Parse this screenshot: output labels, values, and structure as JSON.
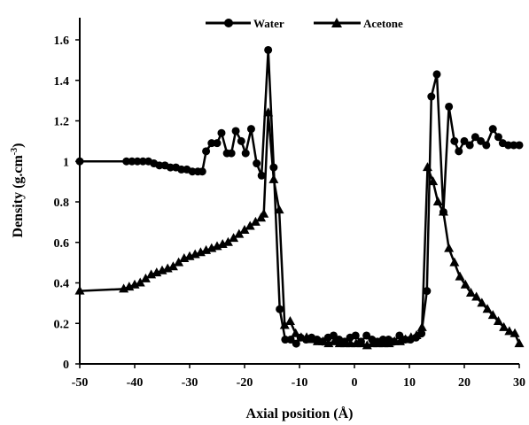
{
  "chart_data": {
    "type": "line",
    "xlabel": "Axial position (Å)",
    "ylabel_main": "Density (g.cm",
    "ylabel_sup": "-3",
    "ylabel_tail": ")",
    "xlim": [
      -50,
      30
    ],
    "ylim": [
      0,
      1.7
    ],
    "x_ticks": [
      -50,
      -40,
      -30,
      -20,
      -10,
      0,
      10,
      20,
      30
    ],
    "x_tick_labels": [
      "-50",
      "-40",
      "-30",
      "-20",
      "-10",
      "0",
      "10",
      "20",
      "30"
    ],
    "y_ticks": [
      0,
      0.2,
      0.4,
      0.6,
      0.8,
      1.0,
      1.2,
      1.4,
      1.6
    ],
    "y_tick_labels": [
      "0",
      "0.2",
      "0.4",
      "0.6",
      "0.8",
      "1",
      "1.2",
      "1.4",
      "1.6"
    ],
    "grid": false,
    "legend_position": "top",
    "series": [
      {
        "name": "Water",
        "marker": "circle",
        "color": "#000000",
        "points": [
          [
            -50,
            1.0
          ],
          [
            -41.5,
            1.0
          ],
          [
            -40.5,
            1.0
          ],
          [
            -39.5,
            1.0
          ],
          [
            -38.5,
            1.0
          ],
          [
            -37.5,
            1.0
          ],
          [
            -36.5,
            0.99
          ],
          [
            -35.5,
            0.98
          ],
          [
            -34.5,
            0.98
          ],
          [
            -33.5,
            0.97
          ],
          [
            -32.5,
            0.97
          ],
          [
            -31.5,
            0.96
          ],
          [
            -30.5,
            0.96
          ],
          [
            -29.5,
            0.95
          ],
          [
            -28.5,
            0.95
          ],
          [
            -27.7,
            0.95
          ],
          [
            -27,
            1.05
          ],
          [
            -26,
            1.09
          ],
          [
            -25,
            1.09
          ],
          [
            -24.2,
            1.14
          ],
          [
            -23.2,
            1.04
          ],
          [
            -22.4,
            1.04
          ],
          [
            -21.6,
            1.15
          ],
          [
            -20.6,
            1.1
          ],
          [
            -19.8,
            1.04
          ],
          [
            -18.8,
            1.16
          ],
          [
            -17.8,
            0.99
          ],
          [
            -16.9,
            0.93
          ],
          [
            -15.7,
            1.55
          ],
          [
            -14.7,
            0.97
          ],
          [
            -13.6,
            0.27
          ],
          [
            -12.6,
            0.12
          ],
          [
            -11.6,
            0.12
          ],
          [
            -10.6,
            0.1
          ],
          [
            -9.8,
            0.13
          ],
          [
            -8.8,
            0.12
          ],
          [
            -7.8,
            0.13
          ],
          [
            -6.8,
            0.12
          ],
          [
            -5.8,
            0.11
          ],
          [
            -4.8,
            0.13
          ],
          [
            -3.8,
            0.14
          ],
          [
            -2.8,
            0.12
          ],
          [
            -1.8,
            0.11
          ],
          [
            -0.8,
            0.13
          ],
          [
            0.2,
            0.14
          ],
          [
            1.2,
            0.11
          ],
          [
            2.2,
            0.14
          ],
          [
            3.2,
            0.12
          ],
          [
            4.2,
            0.11
          ],
          [
            5.2,
            0.12
          ],
          [
            6.2,
            0.12
          ],
          [
            7.2,
            0.11
          ],
          [
            8.2,
            0.14
          ],
          [
            9.2,
            0.12
          ],
          [
            10.2,
            0.12
          ],
          [
            11.2,
            0.13
          ],
          [
            12.2,
            0.15
          ],
          [
            13.2,
            0.36
          ],
          [
            14.0,
            1.32
          ],
          [
            15.0,
            1.43
          ],
          [
            16.2,
            0.75
          ],
          [
            17.2,
            1.27
          ],
          [
            18.2,
            1.1
          ],
          [
            19.0,
            1.05
          ],
          [
            20.0,
            1.1
          ],
          [
            21.0,
            1.08
          ],
          [
            22.0,
            1.12
          ],
          [
            23.0,
            1.1
          ],
          [
            24.0,
            1.08
          ],
          [
            25.2,
            1.16
          ],
          [
            26.2,
            1.12
          ],
          [
            27.0,
            1.09
          ],
          [
            28.0,
            1.08
          ],
          [
            29.0,
            1.08
          ],
          [
            30.0,
            1.08
          ]
        ]
      },
      {
        "name": "Acetone",
        "marker": "triangle",
        "color": "#000000",
        "points": [
          [
            -50,
            0.36
          ],
          [
            -42,
            0.37
          ],
          [
            -41,
            0.38
          ],
          [
            -40,
            0.39
          ],
          [
            -39,
            0.4
          ],
          [
            -38,
            0.42
          ],
          [
            -37,
            0.44
          ],
          [
            -36,
            0.45
          ],
          [
            -35,
            0.46
          ],
          [
            -34,
            0.47
          ],
          [
            -33,
            0.48
          ],
          [
            -32,
            0.5
          ],
          [
            -31,
            0.52
          ],
          [
            -30,
            0.53
          ],
          [
            -29,
            0.54
          ],
          [
            -28,
            0.55
          ],
          [
            -27,
            0.56
          ],
          [
            -26,
            0.57
          ],
          [
            -25,
            0.58
          ],
          [
            -24,
            0.59
          ],
          [
            -23,
            0.6
          ],
          [
            -22,
            0.62
          ],
          [
            -21,
            0.64
          ],
          [
            -20,
            0.66
          ],
          [
            -19,
            0.68
          ],
          [
            -18,
            0.7
          ],
          [
            -17,
            0.72
          ],
          [
            -16.5,
            0.74
          ],
          [
            -15.7,
            1.24
          ],
          [
            -14.7,
            0.91
          ],
          [
            -13.7,
            0.76
          ],
          [
            -12.7,
            0.19
          ],
          [
            -11.7,
            0.21
          ],
          [
            -10.7,
            0.15
          ],
          [
            -9.7,
            0.13
          ],
          [
            -8.7,
            0.13
          ],
          [
            -7.7,
            0.12
          ],
          [
            -6.7,
            0.11
          ],
          [
            -5.7,
            0.11
          ],
          [
            -4.7,
            0.1
          ],
          [
            -3.7,
            0.11
          ],
          [
            -2.7,
            0.1
          ],
          [
            -1.7,
            0.1
          ],
          [
            -0.7,
            0.1
          ],
          [
            0.3,
            0.1
          ],
          [
            1.3,
            0.1
          ],
          [
            2.3,
            0.09
          ],
          [
            3.3,
            0.1
          ],
          [
            4.3,
            0.1
          ],
          [
            5.3,
            0.1
          ],
          [
            6.3,
            0.1
          ],
          [
            7.3,
            0.11
          ],
          [
            8.3,
            0.11
          ],
          [
            9.3,
            0.12
          ],
          [
            10.3,
            0.13
          ],
          [
            11.3,
            0.14
          ],
          [
            12.3,
            0.18
          ],
          [
            13.3,
            0.97
          ],
          [
            14.3,
            0.9
          ],
          [
            15.2,
            0.8
          ],
          [
            16.2,
            0.75
          ],
          [
            17.2,
            0.57
          ],
          [
            18.2,
            0.5
          ],
          [
            19.2,
            0.43
          ],
          [
            20.2,
            0.39
          ],
          [
            21.2,
            0.35
          ],
          [
            22.2,
            0.33
          ],
          [
            23.2,
            0.3
          ],
          [
            24.2,
            0.27
          ],
          [
            25.2,
            0.24
          ],
          [
            26.2,
            0.21
          ],
          [
            27.2,
            0.18
          ],
          [
            28.2,
            0.16
          ],
          [
            29.2,
            0.15
          ],
          [
            30,
            0.1
          ]
        ]
      }
    ]
  }
}
